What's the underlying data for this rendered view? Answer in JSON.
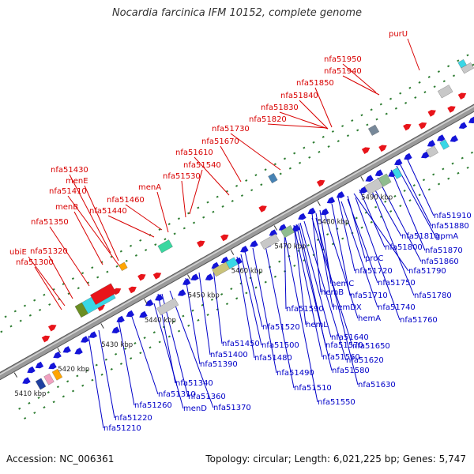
{
  "title": "Nocardia farcinica IFM 10152, complete genome",
  "footer": {
    "accession_label": "Accession:",
    "accession": "NC_006361",
    "topology_label": "Topology:",
    "topology": "circular",
    "length_label": "Length:",
    "length": "6,021,225 bp",
    "genes_label": "Genes:",
    "genes": "5,747"
  },
  "colors": {
    "backbone": "#9a9a9a",
    "tick_dot": "#2e7d32",
    "forward_label": "#d80000",
    "reverse_label": "#0000c8",
    "forward_gene": "#e8141a",
    "reverse_gene": "#1414d8",
    "scale_text": "#222222"
  },
  "scale_ticks": [
    "5410 kbp",
    "5420 kbp",
    "5430 kbp",
    "5440 kbp",
    "5450 kbp",
    "5460 kbp",
    "5470 kbp",
    "5480 kbp",
    "5490 kbp"
  ],
  "forward_labels": [
    "purU",
    "nfa51950",
    "nfa51940",
    "nfa51850",
    "nfa51840",
    "nfa51830",
    "nfa51820",
    "nfa51730",
    "nfa51670",
    "nfa51610",
    "nfa51540",
    "nfa51530",
    "menA",
    "nfa51460",
    "nfa51440",
    "nfa51430",
    "menE",
    "nfa51410",
    "menB",
    "nfa51350",
    "nfa51320",
    "ubiE",
    "nfa51300"
  ],
  "reverse_labels": [
    "nfa51910",
    "nfa51880",
    "gpmA",
    "nfa51810",
    "nfa51870",
    "nfa51800",
    "nfa51860",
    "nfa51790",
    "proC",
    "nfa51720",
    "nfa51750",
    "nfa51780",
    "nfa51710",
    "nfa51740",
    "hemC",
    "hemB",
    "hemDX",
    "hemA",
    "nfa51760",
    "nfa51590",
    "hemL",
    "nfa51640",
    "nfa51570",
    "nfa51650",
    "nfa51560",
    "nfa51620",
    "nfa51580",
    "nfa51630",
    "nfa51520",
    "nfa51500",
    "nfa51480",
    "nfa51490",
    "nfa51510",
    "nfa51550",
    "nfa51450",
    "nfa51400",
    "nfa51390",
    "nfa51340",
    "nfa51360",
    "nfa51370",
    "menD",
    "nfa51310",
    "nfa51260",
    "nfa51220",
    "nfa51210"
  ]
}
